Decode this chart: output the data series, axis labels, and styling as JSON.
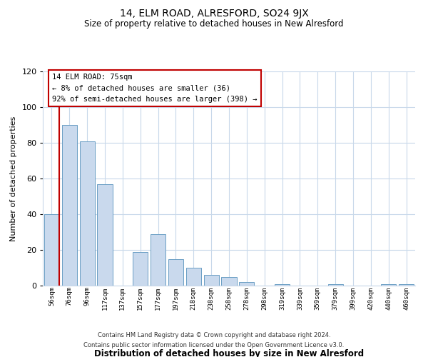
{
  "title": "14, ELM ROAD, ALRESFORD, SO24 9JX",
  "subtitle": "Size of property relative to detached houses in New Alresford",
  "xlabel": "Distribution of detached houses by size in New Alresford",
  "ylabel": "Number of detached properties",
  "bar_labels": [
    "56sqm",
    "76sqm",
    "96sqm",
    "117sqm",
    "137sqm",
    "157sqm",
    "177sqm",
    "197sqm",
    "218sqm",
    "238sqm",
    "258sqm",
    "278sqm",
    "298sqm",
    "319sqm",
    "339sqm",
    "359sqm",
    "379sqm",
    "399sqm",
    "420sqm",
    "440sqm",
    "460sqm"
  ],
  "bar_values": [
    40,
    90,
    81,
    57,
    0,
    19,
    29,
    15,
    10,
    6,
    5,
    2,
    0,
    1,
    0,
    0,
    1,
    0,
    0,
    1,
    1
  ],
  "bar_color": "#c9d9ed",
  "bar_edge_color": "#6a9ec4",
  "marker_line_color": "#c00000",
  "ylim": [
    0,
    120
  ],
  "yticks": [
    0,
    20,
    40,
    60,
    80,
    100,
    120
  ],
  "annotation_title": "14 ELM ROAD: 75sqm",
  "annotation_line1": "← 8% of detached houses are smaller (36)",
  "annotation_line2": "92% of semi-detached houses are larger (398) →",
  "annotation_box_color": "#ffffff",
  "annotation_box_edge": "#c00000",
  "footer_line1": "Contains HM Land Registry data © Crown copyright and database right 2024.",
  "footer_line2": "Contains public sector information licensed under the Open Government Licence v3.0.",
  "background_color": "#ffffff",
  "grid_color": "#c8d8ea"
}
